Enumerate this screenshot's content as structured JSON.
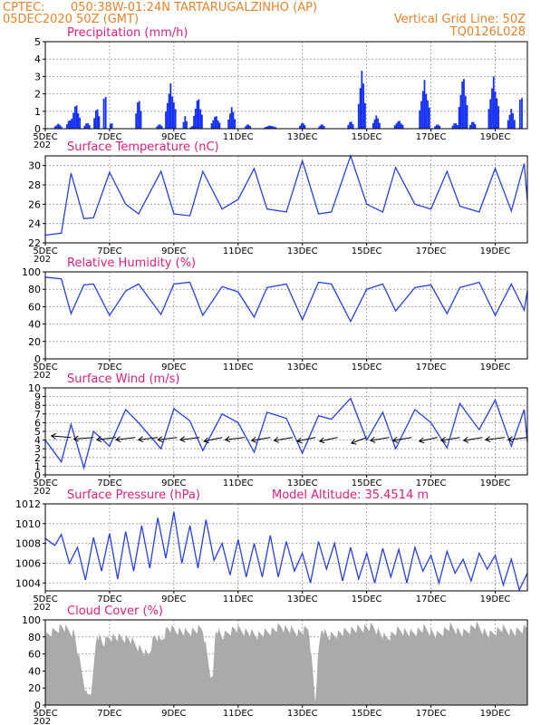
{
  "header": {
    "org": "CPTEC:",
    "location": "050:38W-01:24N  TARTARUGALZINHO (AP)",
    "run": "05DEC2020 50Z (GMT)",
    "grid_note": "Vertical Grid Line: 50Z",
    "model": "TQ0126L028"
  },
  "x_axis": {
    "days": 15,
    "tick_labels": [
      "5DEC",
      "7DEC",
      "9DEC",
      "11DEC",
      "13DEC",
      "15DEC",
      "17DEC",
      "19DEC"
    ],
    "tick_days": [
      0,
      2,
      4,
      6,
      8,
      10,
      12,
      14
    ],
    "year_fragment": "202"
  },
  "colors": {
    "line": "#2a3ee8",
    "bar": "#1530f5",
    "cloud": "#aaaaaa",
    "header": "#e8822e",
    "title": "#e0207a"
  },
  "chart_data": [
    {
      "id": "precip",
      "type": "bar",
      "title": "Precipitation (mm/h)",
      "ylim": [
        0,
        5
      ],
      "yticks": [
        0,
        1,
        2,
        3,
        4,
        5
      ],
      "grid": true,
      "events": [
        [
          0.4,
          0.3,
          0.25
        ],
        [
          0.75,
          0.6,
          0.2
        ],
        [
          0.95,
          1.5,
          0.3
        ],
        [
          1.3,
          0.4,
          0.2
        ],
        [
          1.6,
          1.4,
          0.2
        ],
        [
          1.85,
          3.0,
          0.12
        ],
        [
          2.05,
          0.5,
          0.1
        ],
        [
          2.9,
          2.0,
          0.2
        ],
        [
          3.55,
          0.3,
          0.2
        ],
        [
          3.9,
          2.6,
          0.35
        ],
        [
          4.35,
          0.8,
          0.15
        ],
        [
          4.6,
          0.2,
          0.2
        ],
        [
          4.75,
          1.9,
          0.3
        ],
        [
          5.3,
          0.8,
          0.3
        ],
        [
          5.8,
          1.3,
          0.25
        ],
        [
          6.3,
          0.3,
          0.2
        ],
        [
          7.0,
          0.2,
          0.4
        ],
        [
          8.0,
          0.4,
          0.2
        ],
        [
          8.6,
          0.3,
          0.2
        ],
        [
          9.5,
          0.5,
          0.2
        ],
        [
          9.85,
          3.5,
          0.25
        ],
        [
          10.3,
          0.8,
          0.25
        ],
        [
          11.0,
          0.5,
          0.3
        ],
        [
          11.8,
          2.8,
          0.35
        ],
        [
          12.2,
          0.3,
          0.2
        ],
        [
          12.75,
          0.4,
          0.2
        ],
        [
          13.0,
          3.2,
          0.3
        ],
        [
          13.3,
          0.5,
          0.2
        ],
        [
          13.95,
          3.0,
          0.35
        ],
        [
          14.5,
          1.2,
          0.25
        ],
        [
          14.8,
          2.9,
          0.12
        ]
      ]
    },
    {
      "id": "temp",
      "type": "line",
      "title": "Surface Temperature (nC)",
      "ylim": [
        22,
        31
      ],
      "yticks": [
        22,
        24,
        26,
        28,
        30
      ],
      "grid": true,
      "x": [
        0.0,
        0.5,
        0.8,
        1.2,
        1.5,
        2.0,
        2.5,
        2.9,
        3.6,
        4.0,
        4.5,
        4.9,
        5.5,
        6.0,
        6.5,
        6.9,
        7.5,
        8.0,
        8.5,
        8.9,
        9.5,
        10.0,
        10.5,
        10.9,
        11.5,
        12.0,
        12.5,
        12.9,
        13.5,
        14.0,
        14.5,
        14.9,
        15.0
      ],
      "values": [
        22.8,
        23.0,
        29.2,
        24.5,
        24.6,
        29.3,
        26.0,
        25.0,
        29.4,
        25.0,
        24.8,
        29.4,
        25.5,
        26.5,
        29.7,
        25.5,
        25.2,
        30.5,
        25.0,
        25.2,
        31.0,
        26.0,
        25.2,
        29.8,
        26.0,
        25.5,
        29.4,
        25.8,
        25.2,
        29.7,
        25.3,
        30.2,
        26.3
      ]
    },
    {
      "id": "rh",
      "type": "line",
      "title": "Relative Humidity (%)",
      "ylim": [
        0,
        100
      ],
      "yticks": [
        0,
        20,
        40,
        60,
        80,
        100
      ],
      "grid": true,
      "x": [
        0.0,
        0.5,
        0.8,
        1.2,
        1.5,
        2.0,
        2.5,
        2.9,
        3.6,
        4.0,
        4.5,
        4.9,
        5.5,
        6.0,
        6.5,
        6.9,
        7.5,
        8.0,
        8.5,
        8.9,
        9.5,
        10.0,
        10.5,
        10.9,
        11.5,
        12.0,
        12.5,
        12.9,
        13.5,
        14.0,
        14.5,
        14.9,
        15.0
      ],
      "values": [
        94,
        92,
        52,
        85,
        86,
        50,
        78,
        86,
        51,
        86,
        88,
        50,
        83,
        77,
        48,
        82,
        86,
        45,
        88,
        86,
        43,
        80,
        86,
        55,
        82,
        85,
        52,
        82,
        88,
        50,
        86,
        56,
        78
      ]
    },
    {
      "id": "wind",
      "type": "line",
      "title": "Surface Wind (m/s)",
      "ylim": [
        0,
        10
      ],
      "yticks": [
        0,
        1,
        2,
        3,
        4,
        5,
        6,
        7,
        8,
        9,
        10
      ],
      "grid": true,
      "x": [
        0.0,
        0.5,
        0.8,
        1.2,
        1.5,
        2.0,
        2.5,
        2.9,
        3.6,
        4.0,
        4.5,
        4.9,
        5.5,
        6.0,
        6.5,
        6.9,
        7.5,
        8.0,
        8.5,
        8.9,
        9.5,
        10.0,
        10.5,
        10.9,
        11.5,
        12.0,
        12.5,
        12.9,
        13.5,
        14.0,
        14.5,
        14.9,
        15.0
      ],
      "values": [
        4.0,
        1.5,
        5.8,
        0.8,
        5.0,
        3.3,
        7.5,
        6.0,
        3.0,
        7.6,
        6.2,
        2.8,
        7.0,
        6.0,
        2.6,
        7.2,
        6.5,
        2.5,
        6.8,
        6.4,
        8.8,
        4.0,
        7.2,
        3.0,
        7.5,
        6.0,
        3.1,
        8.2,
        5.2,
        8.6,
        3.3,
        7.5,
        3.8
      ],
      "vectors": [
        [
          0.8,
          170
        ],
        [
          1.5,
          190
        ],
        [
          2.2,
          195
        ],
        [
          2.8,
          195
        ],
        [
          3.5,
          195
        ],
        [
          4.1,
          195
        ],
        [
          4.8,
          195
        ],
        [
          5.5,
          205
        ],
        [
          6.2,
          195
        ],
        [
          7.0,
          200
        ],
        [
          7.7,
          200
        ],
        [
          8.4,
          205
        ],
        [
          9.1,
          205
        ],
        [
          10.0,
          220
        ],
        [
          10.7,
          200
        ],
        [
          11.4,
          200
        ],
        [
          12.2,
          205
        ],
        [
          12.9,
          200
        ],
        [
          13.6,
          200
        ],
        [
          14.3,
          195
        ],
        [
          15.0,
          195
        ]
      ]
    },
    {
      "id": "pressure",
      "type": "line",
      "title": "Surface Pressure (hPa)",
      "annotation": "Model Altitude: 35.4514 m",
      "ylim": [
        1003.2,
        1012
      ],
      "yticks": [
        1004,
        1006,
        1008,
        1010,
        1012
      ],
      "grid": true,
      "x": [
        0.0,
        0.3,
        0.5,
        0.75,
        1.0,
        1.25,
        1.5,
        1.75,
        2.0,
        2.25,
        2.5,
        2.75,
        3.0,
        3.25,
        3.5,
        3.75,
        4.0,
        4.25,
        4.5,
        4.75,
        5.0,
        5.25,
        5.5,
        5.75,
        6.0,
        6.25,
        6.5,
        6.75,
        7.0,
        7.25,
        7.5,
        7.75,
        8.0,
        8.25,
        8.5,
        8.75,
        9.0,
        9.25,
        9.5,
        9.75,
        10.0,
        10.25,
        10.5,
        10.75,
        11.0,
        11.25,
        11.5,
        11.75,
        12.0,
        12.25,
        12.5,
        12.75,
        13.0,
        13.25,
        13.5,
        13.75,
        14.0,
        14.25,
        14.5,
        14.75,
        15.0
      ],
      "values": [
        1008.5,
        1007.8,
        1008.9,
        1006.0,
        1007.6,
        1004.3,
        1008.6,
        1005.2,
        1009.0,
        1004.4,
        1009.2,
        1005.2,
        1009.8,
        1005.5,
        1010.6,
        1006.5,
        1011.2,
        1006.0,
        1009.8,
        1005.5,
        1010.4,
        1006.3,
        1008.0,
        1004.8,
        1008.4,
        1004.6,
        1008.0,
        1004.6,
        1008.8,
        1004.6,
        1008.2,
        1005.2,
        1007.0,
        1004.0,
        1008.2,
        1005.4,
        1008.0,
        1004.2,
        1007.6,
        1004.4,
        1007.0,
        1004.0,
        1007.5,
        1004.6,
        1007.4,
        1004.0,
        1007.6,
        1005.2,
        1006.8,
        1004.0,
        1007.2,
        1005.0,
        1006.4,
        1004.2,
        1007.0,
        1005.4,
        1006.8,
        1003.8,
        1006.4,
        1003.3,
        1005.0
      ]
    },
    {
      "id": "cloud",
      "type": "area",
      "title": "Cloud Cover (%)",
      "ylim": [
        0,
        100
      ],
      "yticks": [
        0,
        20,
        40,
        60,
        80,
        100
      ],
      "grid": true,
      "x": [
        0.0,
        0.5,
        0.9,
        1.1,
        1.3,
        1.45,
        1.6,
        1.8,
        2.0,
        2.6,
        3.2,
        3.4,
        3.6,
        3.8,
        4.4,
        4.9,
        5.2,
        5.3,
        5.5,
        5.9,
        6.6,
        7.1,
        7.3,
        7.9,
        8.2,
        8.4,
        8.5,
        8.6,
        8.8,
        9.5,
        10.2,
        10.6,
        11.0,
        11.4,
        11.8,
        12.2,
        12.6,
        13.0,
        13.4,
        13.8,
        14.2,
        14.6,
        15.0
      ],
      "values": [
        80,
        92,
        84,
        45,
        10,
        18,
        85,
        72,
        80,
        78,
        58,
        82,
        75,
        90,
        85,
        90,
        22,
        92,
        80,
        90,
        82,
        88,
        92,
        85,
        90,
        5,
        62,
        92,
        80,
        88,
        92,
        78,
        88,
        84,
        90,
        82,
        92,
        84,
        94,
        82,
        90,
        85,
        92
      ]
    }
  ]
}
